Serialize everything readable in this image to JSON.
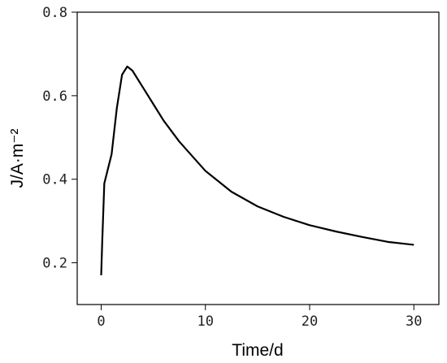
{
  "chart_data": {
    "type": "line",
    "x_label": "Time/d",
    "y_label": "J/A·m⁻²",
    "x": [
      0,
      0.1,
      0.3,
      0.5,
      1,
      1.5,
      2,
      2.5,
      3,
      4,
      5,
      6,
      7.5,
      10,
      12.5,
      15,
      17.5,
      20,
      22.5,
      25,
      27.5,
      30
    ],
    "series": [
      {
        "color": "#000000",
        "values": [
          0.17,
          0.25,
          0.39,
          0.41,
          0.46,
          0.57,
          0.65,
          0.67,
          0.66,
          0.62,
          0.58,
          0.54,
          0.49,
          0.42,
          0.37,
          0.335,
          0.31,
          0.29,
          0.275,
          0.262,
          0.25,
          0.243
        ]
      }
    ],
    "xlim": [
      -2.3,
      32.4
    ],
    "ylim": [
      0.1,
      0.8
    ],
    "xticks": [
      0,
      10,
      20,
      30
    ],
    "yticks": [
      0.2,
      0.4,
      0.6,
      0.8
    ]
  }
}
